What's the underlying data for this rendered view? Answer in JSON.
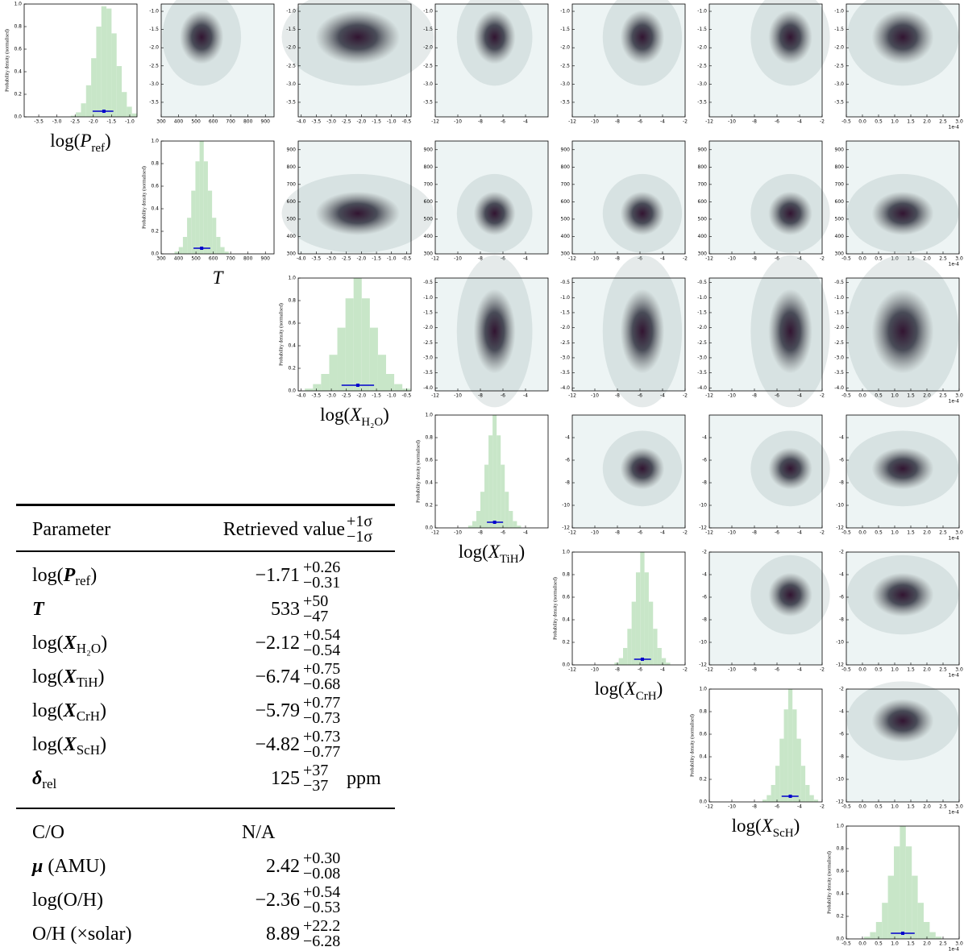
{
  "chart_data": [
    {
      "type": "histogram",
      "xlabel": [
        {
          "t": "log("
        },
        {
          "t": "P",
          "i": true
        },
        {
          "t": "ref",
          "sub": true
        },
        {
          "t": ")"
        }
      ],
      "ylabel": "Probability density (normalised)",
      "bins": [
        -2.62,
        -2.48,
        -2.34,
        -2.2,
        -2.06,
        -1.92,
        -1.78,
        -1.64,
        -1.5,
        -1.36,
        -1.22,
        -1.08,
        -0.94,
        -0.8
      ],
      "values": [
        0.01,
        0.04,
        0.12,
        0.28,
        0.52,
        0.8,
        0.98,
        0.96,
        0.74,
        0.45,
        0.22,
        0.09,
        0.03
      ],
      "color": "#c8e6c8",
      "xlim": [
        -3.9,
        -0.8
      ],
      "xticks": [
        -3.5,
        {
          "value": -3,
          "label": "-3.0"
        },
        -2.5,
        {
          "value": -2,
          "label": "-2.0"
        },
        -1.5,
        {
          "value": -1,
          "label": "-1.0"
        }
      ],
      "ylim": [
        0,
        1
      ],
      "yticks": [
        {
          "value": 0,
          "label": "0.0"
        },
        0.2,
        0.4,
        0.6,
        0.8,
        {
          "value": 1,
          "label": "1.0"
        }
      ],
      "point": [
        -1.71,
        0.31,
        0.26
      ],
      "point_color": "#0000cc"
    },
    {
      "type": "histogram",
      "xlabel": [
        {
          "t": "T",
          "i": true
        }
      ],
      "ylabel": "Probability density (normalised)",
      "bins": [
        377,
        401,
        425,
        449,
        473,
        497,
        521,
        545,
        569,
        593,
        617,
        641,
        665,
        689
      ],
      "values": [
        0.02,
        0.06,
        0.15,
        0.32,
        0.56,
        0.82,
        1.0,
        0.82,
        0.56,
        0.32,
        0.15,
        0.06,
        0.02
      ],
      "color": "#c8e6c8",
      "xlim": [
        300,
        950
      ],
      "xticks": [
        300,
        400,
        500,
        600,
        700,
        800,
        900
      ],
      "ylim": [
        0,
        1
      ],
      "yticks": [
        {
          "value": 0,
          "label": "0.0"
        },
        0.2,
        0.4,
        0.6,
        0.8,
        {
          "value": 1,
          "label": "1.0"
        }
      ],
      "point": [
        533,
        47,
        50
      ],
      "point_color": "#0000cc"
    },
    {
      "type": "histogram",
      "xlabel": [
        {
          "t": "log("
        },
        {
          "t": "X",
          "i": true
        },
        {
          "t": "H₂O",
          "sub": true
        },
        {
          "t": ")"
        }
      ],
      "ylabel": "Probability density (normalised)",
      "bins": [
        -3.88,
        -3.61,
        -3.34,
        -3.07,
        -2.8,
        -2.53,
        -2.26,
        -1.99,
        -1.72,
        -1.45,
        -1.18,
        -0.91,
        -0.64,
        -0.37
      ],
      "values": [
        0.02,
        0.06,
        0.15,
        0.32,
        0.56,
        0.82,
        1.0,
        0.82,
        0.56,
        0.32,
        0.15,
        0.06,
        0.02
      ],
      "color": "#c8e6c8",
      "xlim": [
        -4.1,
        -0.35
      ],
      "xticks": [
        {
          "value": -4,
          "label": "-4.0"
        },
        -3.5,
        {
          "value": -3,
          "label": "-3.0"
        },
        -2.5,
        {
          "value": -2,
          "label": "-2.0"
        },
        -1.5,
        {
          "value": -1,
          "label": "-1.0"
        },
        -0.5
      ],
      "ylim": [
        0,
        1
      ],
      "yticks": [
        {
          "value": 0,
          "label": "0.0"
        },
        0.2,
        0.4,
        0.6,
        0.8,
        {
          "value": 1,
          "label": "1.0"
        }
      ],
      "point": [
        -2.12,
        0.54,
        0.54
      ],
      "point_color": "#0000cc"
    },
    {
      "type": "histogram",
      "xlabel": [
        {
          "t": "log("
        },
        {
          "t": "X",
          "i": true
        },
        {
          "t": "TiH",
          "sub": true
        },
        {
          "t": ")"
        }
      ],
      "ylabel": "Probability density (normalised)",
      "bins": [
        -9.08,
        -8.72,
        -8.36,
        -8,
        -7.64,
        -7.28,
        -6.92,
        -6.56,
        -6.2,
        -5.84,
        -5.48,
        -5.12,
        -4.76,
        -4.4
      ],
      "values": [
        0.02,
        0.06,
        0.15,
        0.32,
        0.56,
        0.82,
        1.0,
        0.82,
        0.56,
        0.32,
        0.15,
        0.06,
        0.02
      ],
      "color": "#c8e6c8",
      "xlim": [
        -12,
        -2
      ],
      "xticks": [
        -12,
        -10,
        -8,
        -6,
        -4
      ],
      "ylim": [
        0,
        1
      ],
      "yticks": [
        {
          "value": 0,
          "label": "0.0"
        },
        0.2,
        0.4,
        0.6,
        0.8,
        {
          "value": 1,
          "label": "1.0"
        }
      ],
      "point": [
        -6.74,
        0.68,
        0.75
      ],
      "point_color": "#0000cc"
    },
    {
      "type": "histogram",
      "xlabel": [
        {
          "t": "log("
        },
        {
          "t": "X",
          "i": true
        },
        {
          "t": "CrH",
          "sub": true
        },
        {
          "t": ")"
        }
      ],
      "ylabel": "Probability density (normalised)",
      "bins": [
        -8.26,
        -7.88,
        -7.5,
        -7.12,
        -6.74,
        -6.36,
        -5.98,
        -5.6,
        -5.22,
        -4.84,
        -4.46,
        -4.08,
        -3.7,
        -3.32
      ],
      "values": [
        0.02,
        0.06,
        0.15,
        0.32,
        0.56,
        0.82,
        1.0,
        0.82,
        0.56,
        0.32,
        0.15,
        0.06,
        0.02
      ],
      "color": "#c8e6c8",
      "xlim": [
        -12,
        -2
      ],
      "xticks": [
        -12,
        -10,
        -8,
        -6,
        -4,
        -2
      ],
      "ylim": [
        0,
        1
      ],
      "yticks": [
        {
          "value": 0,
          "label": "0.0"
        },
        0.2,
        0.4,
        0.6,
        0.8,
        {
          "value": 1,
          "label": "1.0"
        }
      ],
      "point": [
        -5.79,
        0.73,
        0.77
      ],
      "point_color": "#0000cc"
    },
    {
      "type": "histogram",
      "xlabel": [
        {
          "t": "log("
        },
        {
          "t": "X",
          "i": true
        },
        {
          "t": "ScH",
          "sub": true
        },
        {
          "t": ")"
        }
      ],
      "ylabel": "Probability density (normalised)",
      "bins": [
        -7.29,
        -6.91,
        -6.53,
        -6.15,
        -5.77,
        -5.39,
        -5.01,
        -4.63,
        -4.25,
        -3.87,
        -3.49,
        -3.11,
        -2.73,
        -2.35
      ],
      "values": [
        0.02,
        0.06,
        0.15,
        0.32,
        0.56,
        0.82,
        1.0,
        0.82,
        0.56,
        0.32,
        0.15,
        0.06,
        0.02
      ],
      "color": "#c8e6c8",
      "xlim": [
        -12,
        -2
      ],
      "xticks": [
        -12,
        -10,
        -8,
        -6,
        -4,
        -2
      ],
      "ylim": [
        0,
        1
      ],
      "yticks": [
        {
          "value": 0,
          "label": "0.0"
        },
        0.2,
        0.4,
        0.6,
        0.8,
        {
          "value": 1,
          "label": "1.0"
        }
      ],
      "point": [
        -4.82,
        0.77,
        0.73
      ],
      "point_color": "#0000cc"
    },
    {
      "type": "histogram",
      "ylabel": "Probability density (normalised)",
      "bins": [
        0.05,
        0.235,
        0.42,
        0.605,
        0.79,
        0.975,
        1.16,
        1.345,
        1.53,
        1.715,
        1.9,
        2.085,
        2.27,
        2.455
      ],
      "values": [
        0.02,
        0.06,
        0.15,
        0.32,
        0.56,
        0.82,
        1.0,
        0.82,
        0.56,
        0.32,
        0.15,
        0.06,
        0.02
      ],
      "color": "#c8e6c8",
      "xlim": [
        -0.5,
        3
      ],
      "xticks": [
        -0.5,
        {
          "value": 0,
          "label": "0.0"
        },
        0.5,
        {
          "value": 1,
          "label": "1.0"
        },
        1.5,
        {
          "value": 2,
          "label": "2.0"
        },
        2.5,
        {
          "value": 3,
          "label": "3.0"
        }
      ],
      "x_offset_label": "1e-4",
      "ylim": [
        0,
        1
      ],
      "yticks": [
        {
          "value": 0,
          "label": "0.0"
        },
        0.2,
        0.4,
        0.6,
        0.8,
        {
          "value": 1,
          "label": "1.0"
        }
      ],
      "point": [
        1.25,
        0.37,
        0.37
      ],
      "point_color": "#0000cc"
    }
  ],
  "table": {
    "header": [
      "Parameter",
      "Retrieved value"
    ],
    "header_plus": "+1σ",
    "header_minus": "−1σ",
    "rows": [
      {
        "label": [
          {
            "t": "log("
          },
          {
            "t": "P",
            "i": true
          },
          {
            "t": "ref",
            "sub": true
          },
          {
            "t": ")"
          }
        ],
        "value": "−1.71",
        "plus": "+0.26",
        "minus": "−0.31"
      },
      {
        "label": [
          {
            "t": "T",
            "i": true
          }
        ],
        "value": "533",
        "plus": "+50",
        "minus": "−47"
      },
      {
        "label": [
          {
            "t": "log("
          },
          {
            "t": "X",
            "i": true
          },
          {
            "t": "H₂O",
            "sub": true
          },
          {
            "t": ")"
          }
        ],
        "value": "−2.12",
        "plus": "+0.54",
        "minus": "−0.54"
      },
      {
        "label": [
          {
            "t": "log("
          },
          {
            "t": "X",
            "i": true
          },
          {
            "t": "TiH",
            "sub": true
          },
          {
            "t": ")"
          }
        ],
        "value": "−6.74",
        "plus": "+0.75",
        "minus": "−0.68"
      },
      {
        "label": [
          {
            "t": "log("
          },
          {
            "t": "X",
            "i": true
          },
          {
            "t": "CrH",
            "sub": true
          },
          {
            "t": ")"
          }
        ],
        "value": "−5.79",
        "plus": "+0.77",
        "minus": "−0.73"
      },
      {
        "label": [
          {
            "t": "log("
          },
          {
            "t": "X",
            "i": true
          },
          {
            "t": "ScH",
            "sub": true
          },
          {
            "t": ")"
          }
        ],
        "value": "−4.82",
        "plus": "+0.73",
        "minus": "−0.77"
      },
      {
        "label": [
          {
            "t": "δ",
            "i": true
          },
          {
            "t": "rel",
            "sub": true
          }
        ],
        "value": "125",
        "plus": "+37",
        "minus": "−37",
        "unit": "ppm"
      }
    ],
    "derived": [
      {
        "label": [
          {
            "t": "C/O"
          }
        ],
        "value": "N/A"
      },
      {
        "label": [
          {
            "t": "μ",
            "i": true
          },
          {
            "t": " (AMU)"
          }
        ],
        "value": "2.42",
        "plus": "+0.30",
        "minus": "−0.08"
      },
      {
        "label": [
          {
            "t": "log(O/H)"
          }
        ],
        "value": "−2.36",
        "plus": "+0.54",
        "minus": "−0.53"
      },
      {
        "label": [
          {
            "t": "O/H (×solar)"
          }
        ],
        "value": "8.89",
        "plus": "+22.2",
        "minus": "−6.28"
      }
    ]
  }
}
